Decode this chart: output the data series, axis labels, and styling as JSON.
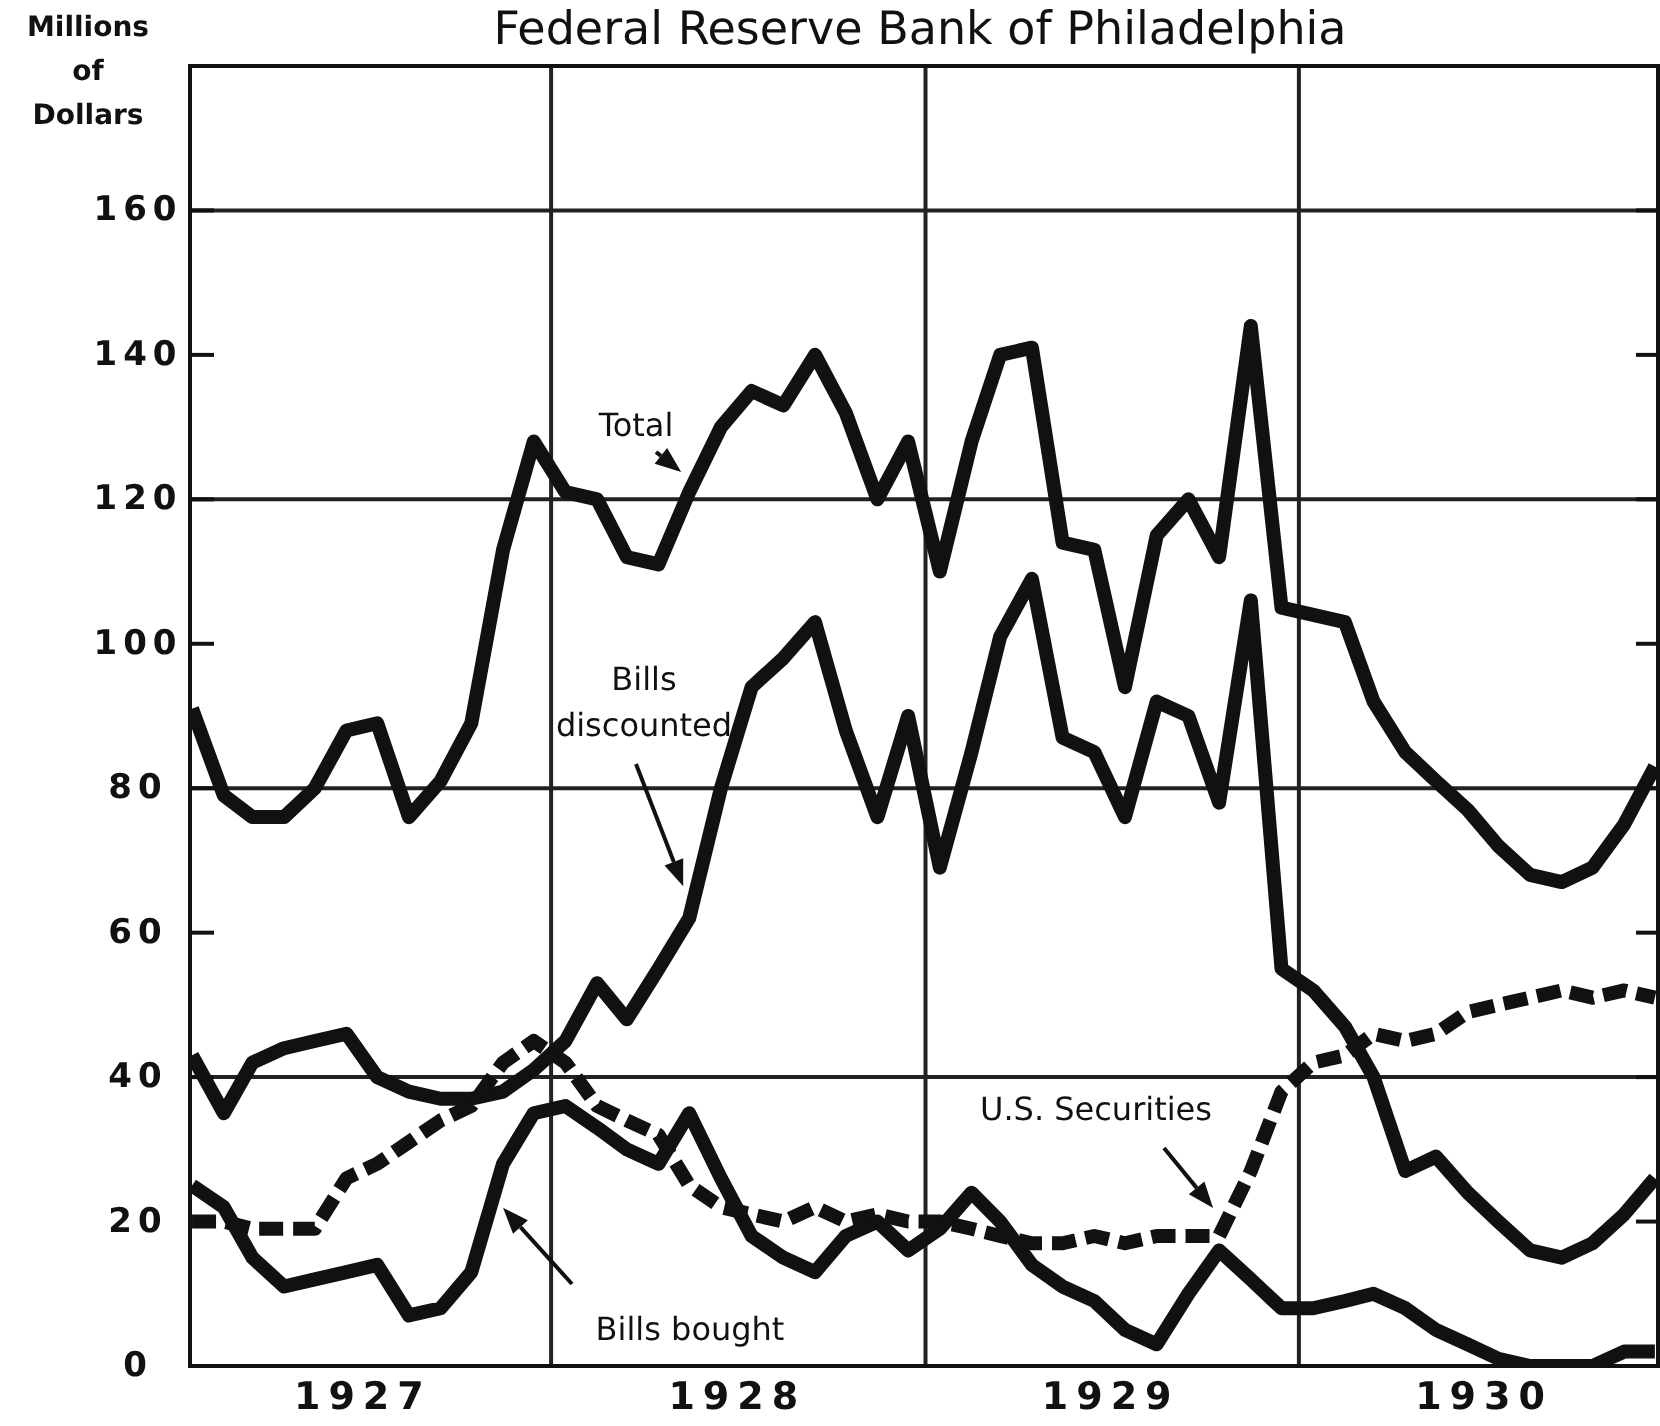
{
  "chart_data": {
    "type": "line",
    "title": "Federal Reserve Bank of Philadelphia",
    "ylabel": "Millions of Dollars",
    "x": [
      "1927-01-15",
      "1927-02-15",
      "1927-03-15",
      "1927-04-15",
      "1927-05-15",
      "1927-06-15",
      "1927-07-15",
      "1927-08-15",
      "1927-09-15",
      "1927-10-15",
      "1927-11-15",
      "1927-12-15",
      "1928-01-15",
      "1928-02-15",
      "1928-03-15",
      "1928-04-15",
      "1928-05-15",
      "1928-06-15",
      "1928-07-15",
      "1928-08-15",
      "1928-09-15",
      "1928-10-15",
      "1928-11-15",
      "1928-12-15",
      "1929-01-15",
      "1929-02-15",
      "1929-03-15",
      "1929-04-15",
      "1929-05-15",
      "1929-06-15",
      "1929-07-15",
      "1929-08-15",
      "1929-09-15",
      "1929-10-15",
      "1929-11-15",
      "1929-12-15",
      "1930-01-15",
      "1930-02-15",
      "1930-03-15",
      "1930-04-15",
      "1930-05-15",
      "1930-06-15",
      "1930-07-15",
      "1930-08-15",
      "1930-09-15",
      "1930-10-15",
      "1930-11-15",
      "1930-12-15"
    ],
    "series": [
      {
        "name": "Total",
        "color": "#111111",
        "line_style": "solid",
        "values": [
          91,
          79,
          76,
          76,
          80,
          88,
          89,
          76,
          81,
          89,
          113,
          128,
          121,
          120,
          112,
          111,
          121,
          130,
          135,
          133,
          140,
          132,
          120,
          128,
          110,
          128,
          140,
          141,
          114,
          113,
          94,
          115,
          120,
          112,
          144,
          105,
          104,
          103,
          92,
          85,
          81,
          77,
          72,
          68,
          67,
          69,
          75,
          83
        ]
      },
      {
        "name": "Bills discounted",
        "color": "#111111",
        "line_style": "solid",
        "values": [
          43,
          35,
          42,
          44,
          45,
          46,
          40,
          38,
          37,
          37,
          38,
          41,
          45,
          53,
          48,
          55,
          62,
          80,
          94,
          98,
          103,
          88,
          76,
          90,
          69,
          85,
          101,
          109,
          87,
          85,
          76,
          92,
          90,
          78,
          106,
          55,
          52,
          47,
          40,
          27,
          29,
          24,
          20,
          16,
          15,
          17,
          21,
          26
        ]
      },
      {
        "name": "U.S. Securities",
        "color": "#111111",
        "line_style": "dashed",
        "values": [
          20,
          20,
          19,
          19,
          19,
          26,
          28,
          31,
          34,
          36,
          42,
          45,
          42,
          36,
          34,
          32,
          25,
          22,
          21,
          20,
          22,
          20,
          21,
          20,
          20,
          19,
          18,
          17,
          17,
          18,
          17,
          18,
          18,
          18,
          27,
          38,
          42,
          43,
          46,
          45,
          46,
          49,
          50,
          51,
          52,
          51,
          52,
          51
        ]
      },
      {
        "name": "Bills bought",
        "color": "#111111",
        "line_style": "solid",
        "values": [
          25,
          22,
          15,
          11,
          12,
          13,
          14,
          7,
          8,
          13,
          28,
          35,
          36,
          33,
          30,
          28,
          35,
          26,
          18,
          15,
          13,
          18,
          20,
          16,
          19,
          24,
          20,
          14,
          11,
          9,
          5,
          3,
          10,
          16,
          12,
          8,
          8,
          9,
          10,
          8,
          5,
          3,
          1,
          0,
          0,
          0,
          2,
          2
        ]
      }
    ],
    "xlim": [
      "1927-01-13",
      "1930-12-20"
    ],
    "xticks": [
      {
        "value": "1927-07-01",
        "label": "1927"
      },
      {
        "value": "1928-07-01",
        "label": "1928"
      },
      {
        "value": "1929-07-01",
        "label": "1929"
      },
      {
        "value": "1930-07-01",
        "label": "1930"
      }
    ],
    "ylim": [
      0,
      180
    ],
    "yticks": [
      0,
      20,
      40,
      60,
      80,
      100,
      120,
      140,
      160
    ],
    "ref_lines": [
      {
        "axis": "x",
        "value": "1928-01-01"
      },
      {
        "axis": "x",
        "value": "1929-01-01"
      },
      {
        "axis": "x",
        "value": "1930-01-01"
      },
      {
        "axis": "y",
        "value": 40
      },
      {
        "axis": "y",
        "value": 80
      },
      {
        "axis": "y",
        "value": 120
      },
      {
        "axis": "y",
        "value": 160
      }
    ],
    "marker": "none"
  }
}
